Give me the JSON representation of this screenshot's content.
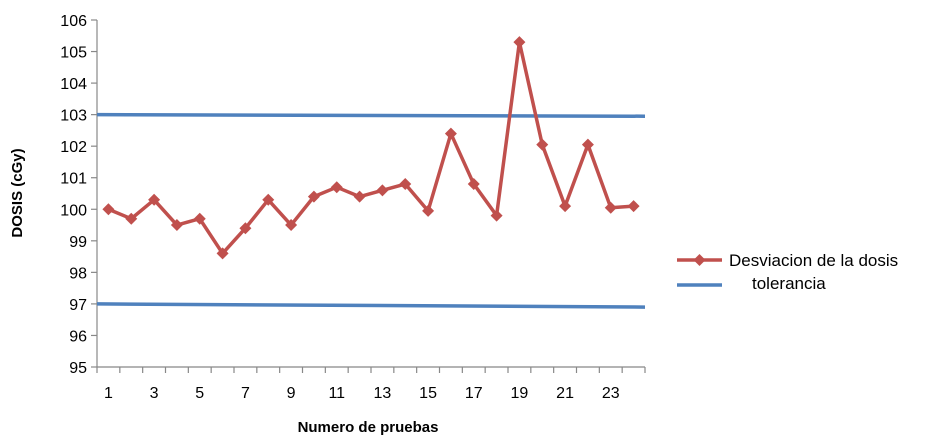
{
  "chart_data": {
    "type": "line",
    "title": "",
    "xlabel": "Numero de pruebas",
    "ylabel": "DOSIS (cGy)",
    "ylim": [
      95,
      106
    ],
    "yticks": [
      "95",
      "96",
      "97",
      "98",
      "99",
      "100",
      "101",
      "102",
      "103",
      "104",
      "105",
      "106"
    ],
    "x": [
      1,
      2,
      3,
      4,
      5,
      6,
      7,
      8,
      9,
      10,
      11,
      12,
      13,
      14,
      15,
      16,
      17,
      18,
      19,
      20,
      21,
      22,
      23,
      24
    ],
    "xtick_labels": [
      "1",
      "3",
      "5",
      "7",
      "9",
      "11",
      "13",
      "15",
      "17",
      "19",
      "21",
      "23"
    ],
    "grid": false,
    "legend_position": "right",
    "series": [
      {
        "name": "Desviacion de la dosis",
        "color": "#C0504D",
        "marker": "diamond",
        "values": [
          100.0,
          99.7,
          100.3,
          99.5,
          99.7,
          98.6,
          99.4,
          100.3,
          99.5,
          100.4,
          100.7,
          100.4,
          100.6,
          100.8,
          99.95,
          102.4,
          100.8,
          99.8,
          105.3,
          102.05,
          100.1,
          102.05,
          100.05,
          100.1
        ]
      },
      {
        "name": "tolerancia",
        "color": "#4F81BD",
        "values_upper": [
          103.0,
          102.95
        ],
        "values_lower": [
          97.0,
          96.9
        ]
      }
    ]
  }
}
